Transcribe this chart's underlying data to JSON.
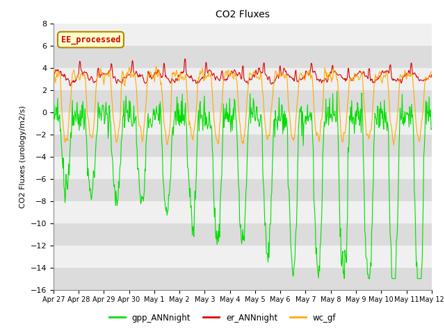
{
  "title": "CO2 Fluxes",
  "ylabel": "CO2 Fluxes (urology/m2/s)",
  "ylim": [
    -16,
    8
  ],
  "yticks": [
    -16,
    -14,
    -12,
    -10,
    -8,
    -6,
    -4,
    -2,
    0,
    2,
    4,
    6,
    8
  ],
  "background_color": "#e0e0e0",
  "plot_bg_color": "#e0e0e0",
  "fig_bg_color": "#ffffff",
  "legend_label": "EE_processed",
  "legend_box_color": "#ffffcc",
  "legend_box_edge": "#cc0000",
  "series": {
    "gpp_ANNnight": {
      "color": "#00dd00",
      "linewidth": 0.8
    },
    "er_ANNnight": {
      "color": "#dd0000",
      "linewidth": 0.8
    },
    "wc_gf": {
      "color": "#ffaa00",
      "linewidth": 0.8
    }
  },
  "xticklabels": [
    "Apr 27",
    "Apr 28",
    "Apr 29",
    "Apr 30",
    "May 1",
    "May 2",
    "May 3",
    "May 4",
    "May 5",
    "May 6",
    "May 7",
    "May 8",
    "May 9",
    "May 10",
    "May 11",
    "May 12"
  ],
  "n_points": 720,
  "n_days": 15
}
